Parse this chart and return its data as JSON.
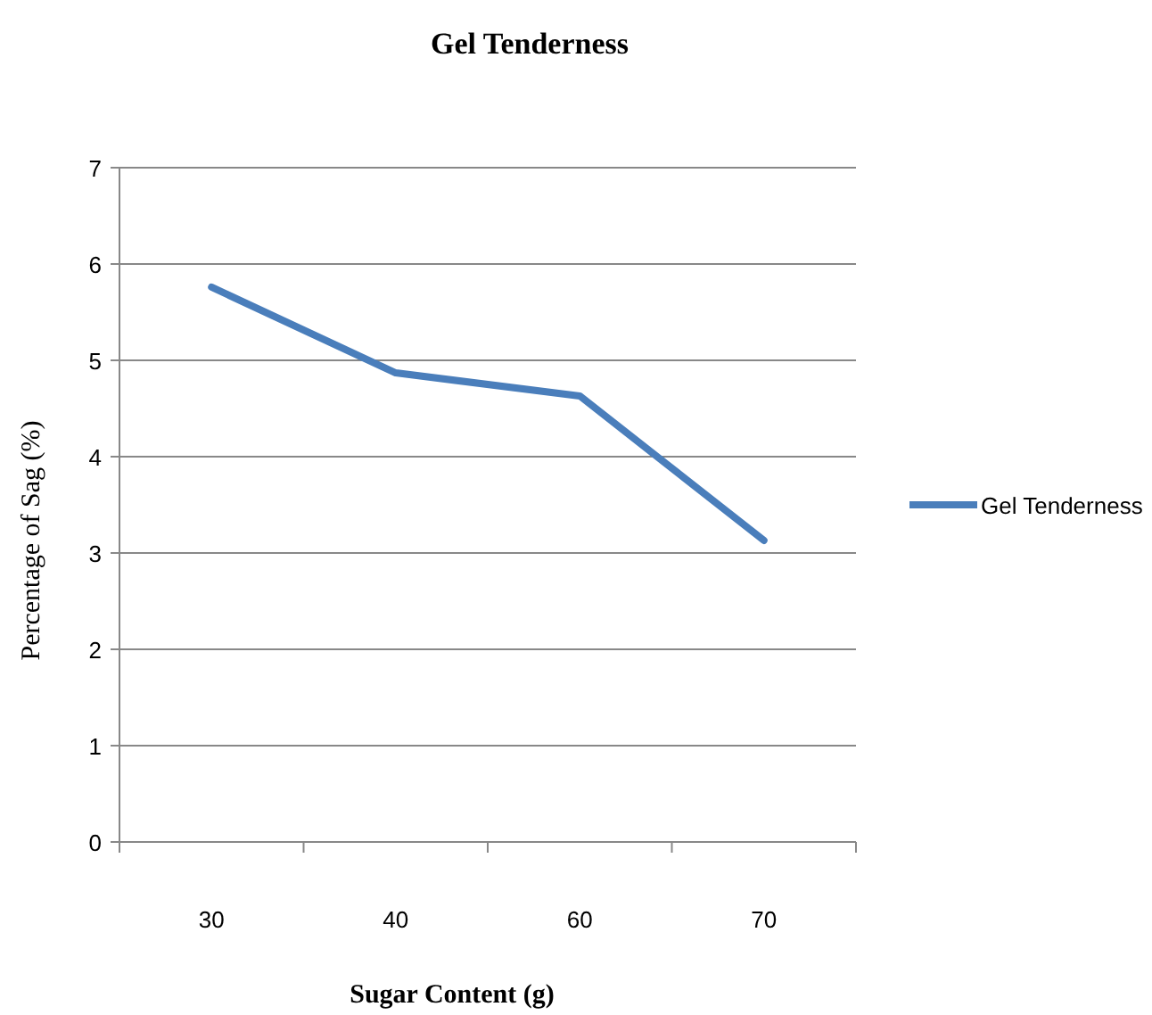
{
  "chart_data": {
    "type": "line",
    "title": "Gel Tenderness",
    "xlabel": "Sugar Content (g)",
    "ylabel": "Percentage of Sag (%)",
    "categories": [
      "30",
      "40",
      "60",
      "70"
    ],
    "series": [
      {
        "name": "Gel Tenderness",
        "color": "#4a7ebb",
        "values": [
          5.76,
          4.87,
          4.63,
          3.13
        ]
      }
    ],
    "ylim": [
      0,
      7
    ],
    "yticks": [
      0,
      1,
      2,
      3,
      4,
      5,
      6,
      7
    ],
    "grid": "y",
    "legend": "right",
    "marker": "none",
    "line_style": "solid"
  }
}
